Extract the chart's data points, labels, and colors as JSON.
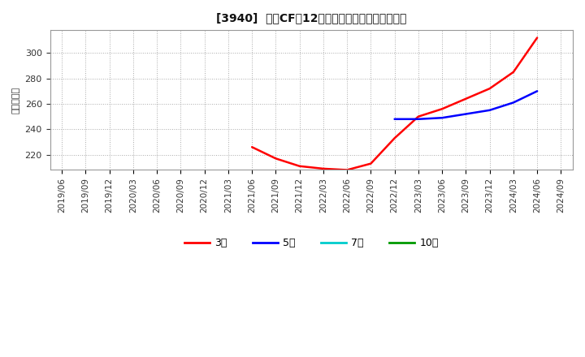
{
  "title": "[3940]  営業CFの12か月移動合計の平均値の推移",
  "ylabel": "（百万円）",
  "background_color": "#ffffff",
  "plot_bg_color": "#ffffff",
  "grid_color": "#aaaaaa",
  "ylim": [
    208,
    318
  ],
  "yticks": [
    220,
    240,
    260,
    280,
    300
  ],
  "series": {
    "3year": {
      "color": "#ff0000",
      "label": "3年",
      "x": [
        "2021/06",
        "2021/09",
        "2021/12",
        "2022/03",
        "2022/06",
        "2022/09",
        "2022/12",
        "2023/03",
        "2023/06",
        "2023/09",
        "2023/12",
        "2024/03",
        "2024/06"
      ],
      "y": [
        226,
        217,
        211,
        209,
        208,
        213,
        233,
        250,
        256,
        264,
        272,
        285,
        312
      ]
    },
    "5year": {
      "color": "#0000ff",
      "label": "5年",
      "x": [
        "2022/12",
        "2023/03",
        "2023/06",
        "2023/09",
        "2023/12",
        "2024/03",
        "2024/06"
      ],
      "y": [
        248,
        248,
        249,
        252,
        255,
        261,
        270
      ]
    },
    "7year": {
      "color": "#00cccc",
      "label": "7年",
      "x": [],
      "y": []
    },
    "10year": {
      "color": "#009900",
      "label": "10年",
      "x": [],
      "y": []
    }
  },
  "xtick_labels": [
    "2019/06",
    "2019/09",
    "2019/12",
    "2020/03",
    "2020/06",
    "2020/09",
    "2020/12",
    "2021/03",
    "2021/06",
    "2021/09",
    "2021/12",
    "2022/03",
    "2022/06",
    "2022/09",
    "2022/12",
    "2023/03",
    "2023/06",
    "2023/09",
    "2023/12",
    "2024/03",
    "2024/06",
    "2024/09"
  ],
  "legend_entries": [
    "3年",
    "5年",
    "7年",
    "10年"
  ],
  "legend_colors": [
    "#ff0000",
    "#0000ff",
    "#00cccc",
    "#009900"
  ]
}
